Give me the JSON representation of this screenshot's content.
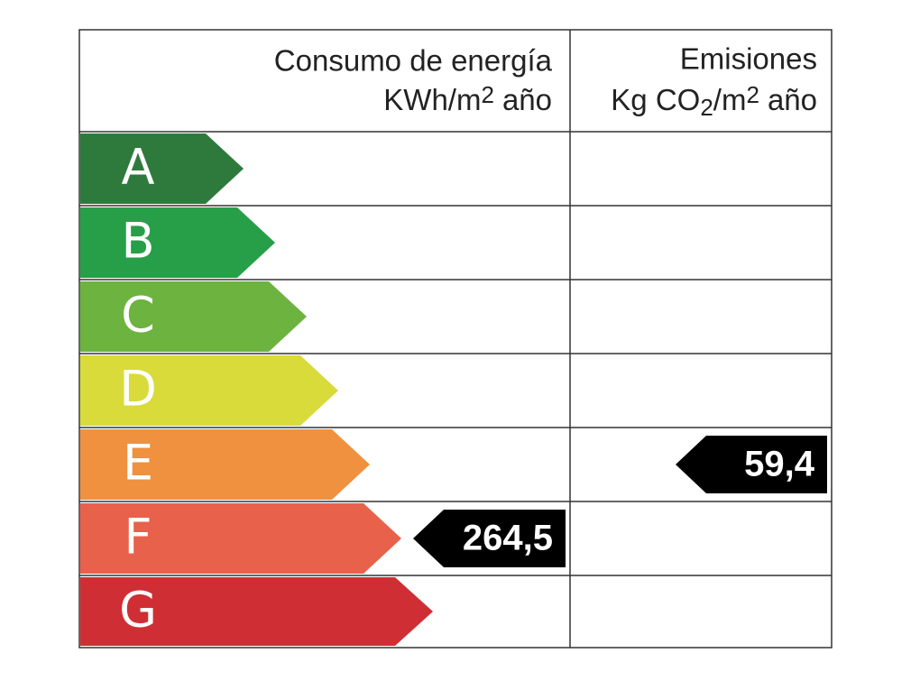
{
  "header": {
    "energy": {
      "title": "Consumo de energía",
      "unit": [
        "KWh/m",
        "2",
        "año"
      ]
    },
    "emissions": {
      "title": "Emisiones",
      "unit": [
        "Kg CO",
        "2",
        "/m",
        "2",
        "año"
      ]
    }
  },
  "rows": [
    {
      "letter": "A",
      "color": "#2e7a3c"
    },
    {
      "letter": "B",
      "color": "#279f48"
    },
    {
      "letter": "C",
      "color": "#6db33f"
    },
    {
      "letter": "D",
      "color": "#d8db3a"
    },
    {
      "letter": "E",
      "color": "#ef913f"
    },
    {
      "letter": "F",
      "color": "#e8614b"
    },
    {
      "letter": "G",
      "color": "#cf2f34"
    }
  ],
  "energy_rating": {
    "row": "F",
    "value": "264,5"
  },
  "emissions_rating": {
    "row": "E",
    "value": "59,4"
  }
}
